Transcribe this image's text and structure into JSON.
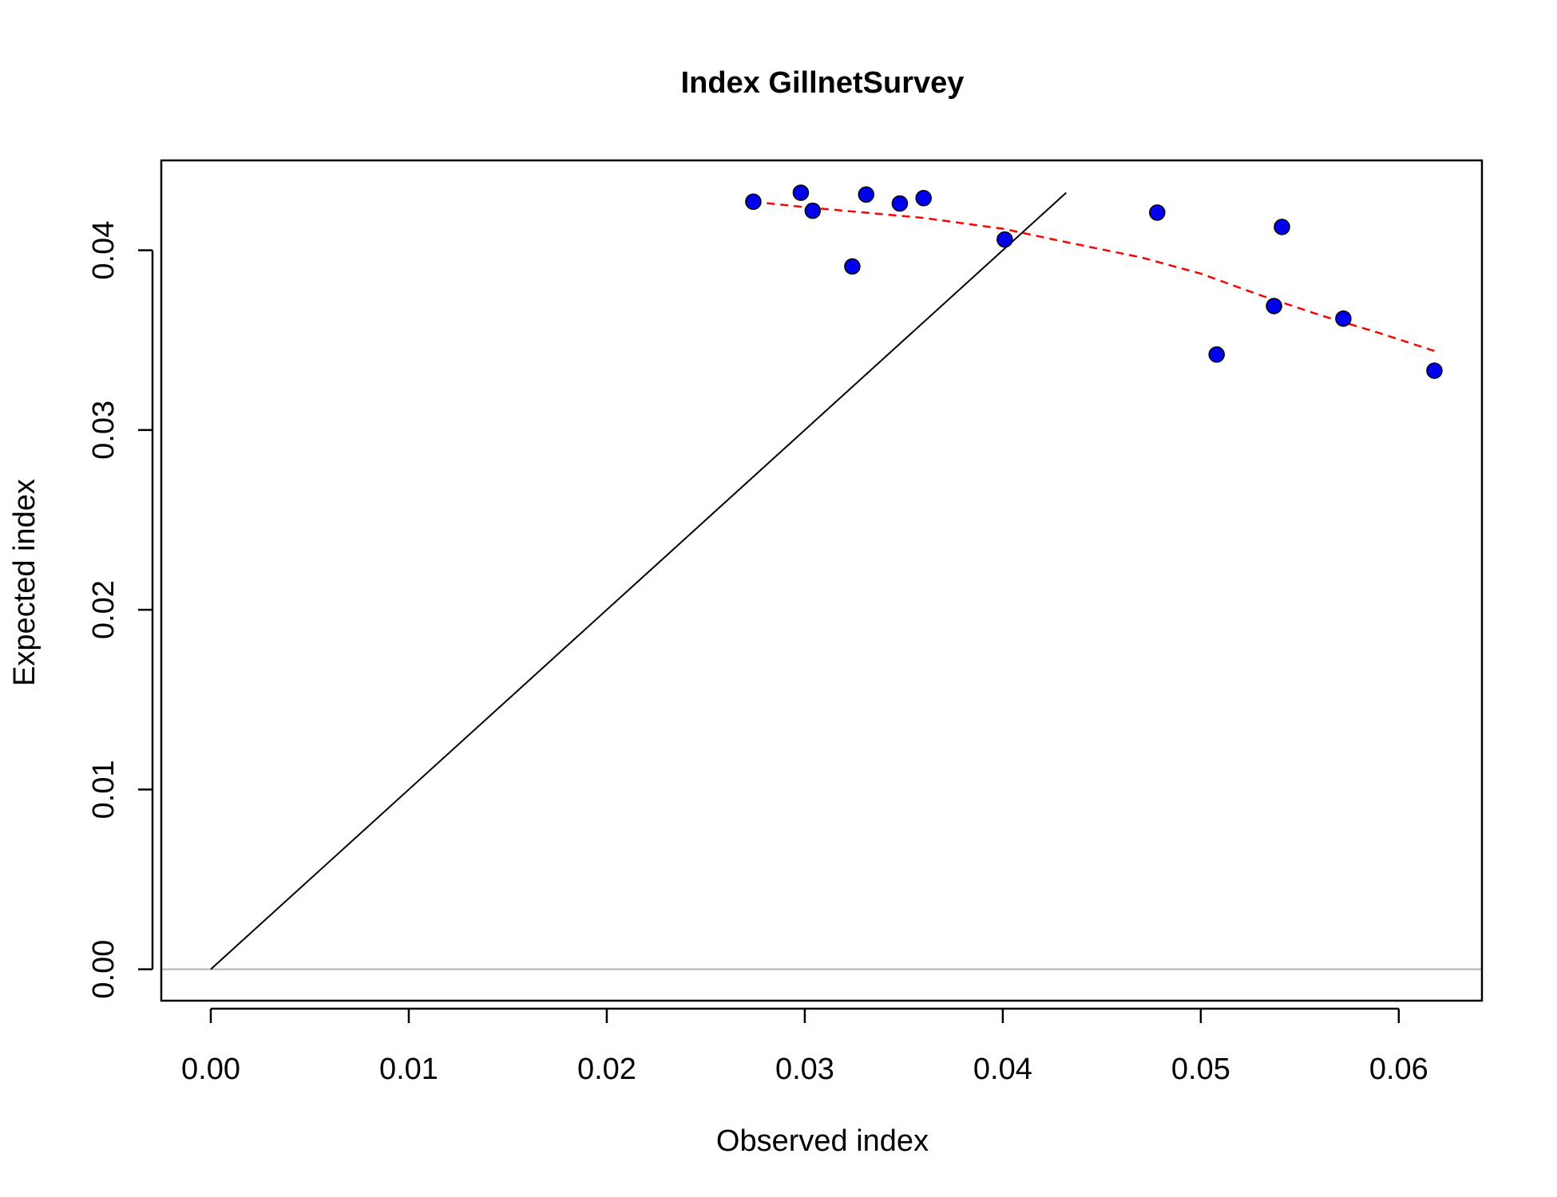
{
  "chart_data": {
    "type": "scatter",
    "title": "Index GillnetSurvey",
    "xlabel": "Observed index",
    "ylabel": "Expected index",
    "xlim": [
      -0.0025,
      0.0642
    ],
    "ylim": [
      -0.00175,
      0.045
    ],
    "x_ticks": [
      0.0,
      0.01,
      0.02,
      0.03,
      0.04,
      0.05,
      0.06
    ],
    "x_tick_labels": [
      "0.00",
      "0.01",
      "0.02",
      "0.03",
      "0.04",
      "0.05",
      "0.06"
    ],
    "y_ticks": [
      0.0,
      0.01,
      0.02,
      0.03,
      0.04
    ],
    "y_tick_labels": [
      "0.00",
      "0.01",
      "0.02",
      "0.03",
      "0.04"
    ],
    "grid": false,
    "points": {
      "x": [
        0.0274,
        0.0298,
        0.0304,
        0.0324,
        0.0331,
        0.0348,
        0.036,
        0.0401,
        0.0478,
        0.0508,
        0.0537,
        0.0541,
        0.0572,
        0.0618
      ],
      "y": [
        0.0427,
        0.0432,
        0.0422,
        0.0391,
        0.0431,
        0.0426,
        0.0429,
        0.0406,
        0.0421,
        0.0342,
        0.0369,
        0.0413,
        0.0362,
        0.0333
      ],
      "fill_color": "#0000ee",
      "edge_color": "#000000"
    },
    "identity_line": {
      "x": [
        0.0,
        0.0432
      ],
      "y": [
        0.0,
        0.0432
      ],
      "color": "#000000"
    },
    "zero_line": {
      "y": 0.0,
      "color": "#bebebe"
    },
    "smooth_line": {
      "x": [
        0.0274,
        0.03,
        0.033,
        0.036,
        0.04,
        0.043,
        0.047,
        0.05,
        0.053,
        0.056,
        0.059,
        0.0618
      ],
      "y": [
        0.0427,
        0.0424,
        0.0421,
        0.0418,
        0.0412,
        0.0405,
        0.0396,
        0.0387,
        0.0375,
        0.0364,
        0.0354,
        0.0344
      ],
      "color": "#ff0000",
      "style": "dashed"
    }
  }
}
